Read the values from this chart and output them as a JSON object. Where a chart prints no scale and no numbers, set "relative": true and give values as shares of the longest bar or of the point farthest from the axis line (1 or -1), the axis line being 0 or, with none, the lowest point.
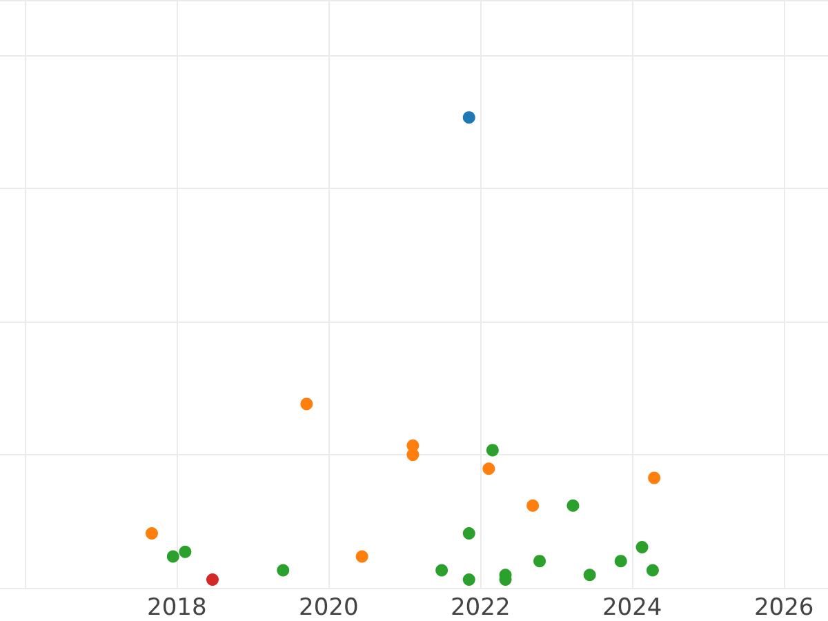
{
  "chart_data": {
    "type": "scatter",
    "relative": true,
    "marker": "circle",
    "grid": true,
    "xlim": [
      2015.67,
      2026.58
    ],
    "xticks": [
      {
        "value": 2016,
        "label": null
      },
      2018,
      2020,
      2022,
      2024,
      2026
    ],
    "series": [
      {
        "color": "#1f77b4",
        "x": [
          2021.85
        ],
        "values": [
          1
        ]
      },
      {
        "color": "#ff7f0e",
        "x": [
          2017.67,
          2019.71,
          2020.44,
          2021.11,
          2021.11,
          2022.11,
          2022.69,
          2024.29
        ],
        "values": [
          0.1,
          0.38,
          0.05,
          0.29,
          0.27,
          0.24,
          0.16,
          0.22
        ]
      },
      {
        "color": "#2ca02c",
        "x": [
          2017.95,
          2018.11,
          2019.4,
          2021.49,
          2021.85,
          2021.85,
          2022.16,
          2022.33,
          2022.33,
          2022.78,
          2023.22,
          2023.44,
          2023.85,
          2024.13,
          2024.27
        ],
        "values": [
          0.05,
          0.06,
          0.02,
          0.02,
          0.1,
          0,
          0.28,
          0.01,
          0,
          0.04,
          0.16,
          0.01,
          0.04,
          0.07,
          0.02
        ]
      },
      {
        "color": "#d62728",
        "x": [
          2018.47
        ],
        "values": [
          0
        ]
      }
    ]
  }
}
